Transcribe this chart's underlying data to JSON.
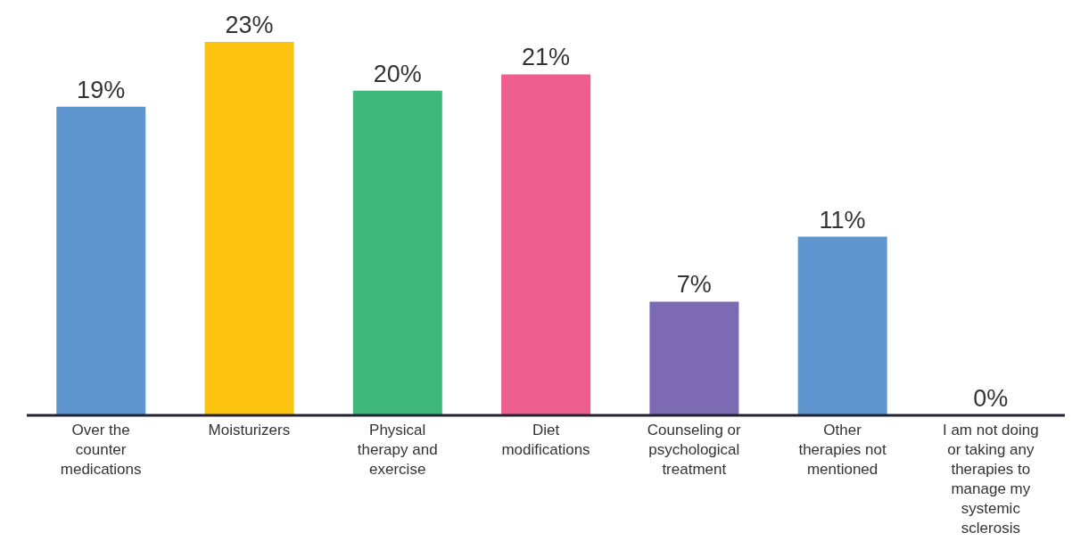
{
  "chart_data": {
    "type": "bar",
    "categories": [
      "Over the counter medications",
      "Moisturizers",
      "Physical therapy and exercise",
      "Diet modifications",
      "Counseling or psychological treatment",
      "Other therapies not mentioned",
      "I am not doing or taking any therapies to manage my systemic sclerosis"
    ],
    "values": [
      19,
      23,
      20,
      21,
      7,
      11,
      0
    ],
    "colors": [
      "#6096cf",
      "#fbc30f",
      "#41b87b",
      "#ee5f90",
      "#7c6bb3",
      "#6096cf",
      "#6096cf"
    ],
    "value_labels": [
      "19%",
      "23%",
      "20%",
      "21%",
      "7%",
      "11%",
      "0%"
    ],
    "grid": false,
    "legend": false
  }
}
